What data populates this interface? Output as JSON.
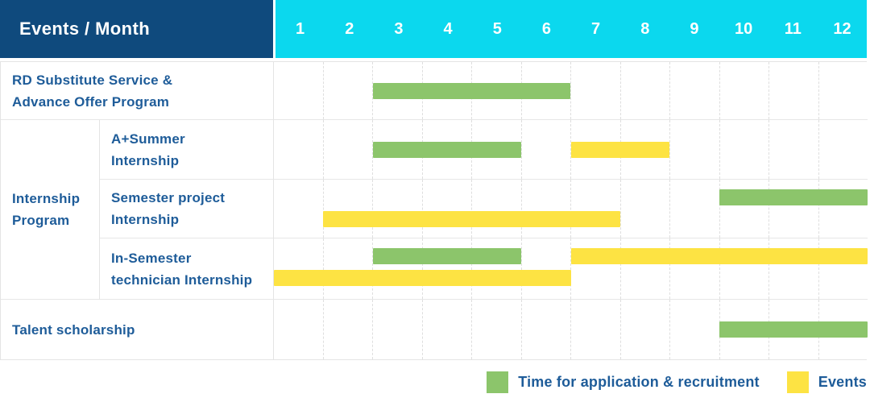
{
  "header": {
    "title": "Events / Month",
    "months": [
      "1",
      "2",
      "3",
      "4",
      "5",
      "6",
      "7",
      "8",
      "9",
      "10",
      "11",
      "12"
    ]
  },
  "colors": {
    "header_navy": "#0f4a7d",
    "month_header_cyan": "#0bd8ee",
    "green": "#8cc56b",
    "yellow": "#fde343",
    "label_text_blue": "#1e5c99",
    "grid_line": "#e4e4e4"
  },
  "row_labels": {
    "row1": {
      "line1": "RD Substitute Service &",
      "line2": "Advance Offer Program"
    },
    "group": {
      "line1": "Internship",
      "line2": "Program"
    },
    "row2": {
      "line1": "A+Summer",
      "line2": "Internship"
    },
    "row3": {
      "line1": "Semester project",
      "line2": "Internship"
    },
    "row4": {
      "line1": "In-Semester",
      "line2": "technician Internship"
    },
    "row5": {
      "line1": "Talent scholarship"
    }
  },
  "legend": {
    "items": [
      {
        "label": "Time for application & recruitment",
        "color": "#8cc56b"
      },
      {
        "label": "Events",
        "color": "#fde343"
      }
    ]
  },
  "chart_data": {
    "type": "bar",
    "subtype": "gantt-timeline",
    "title": "Events / Month",
    "x_axis": {
      "unit": "month",
      "ticks": [
        1,
        2,
        3,
        4,
        5,
        6,
        7,
        8,
        9,
        10,
        11,
        12
      ],
      "range": [
        1,
        12
      ]
    },
    "grid": true,
    "legend_position": "bottom-right",
    "series_legend": [
      {
        "name": "Time for application & recruitment",
        "color": "#8cc56b"
      },
      {
        "name": "Events",
        "color": "#fde343"
      }
    ],
    "rows": [
      {
        "label": "RD Substitute Service & Advance Offer Program",
        "group": null,
        "bars": [
          {
            "series": "Time for application & recruitment",
            "start_month": 3,
            "end_month": 6,
            "track": "single"
          }
        ]
      },
      {
        "label": "A+Summer Internship",
        "group": "Internship Program",
        "bars": [
          {
            "series": "Time for application & recruitment",
            "start_month": 3,
            "end_month": 5,
            "track": "single"
          },
          {
            "series": "Events",
            "start_month": 7,
            "end_month": 8,
            "track": "single"
          }
        ]
      },
      {
        "label": "Semester project Internship",
        "group": "Internship Program",
        "bars": [
          {
            "series": "Time for application & recruitment",
            "start_month": 10,
            "end_month": 12,
            "track": "top"
          },
          {
            "series": "Events",
            "start_month": 2,
            "end_month": 7,
            "track": "bottom"
          }
        ]
      },
      {
        "label": "In-Semester technician Internship",
        "group": "Internship Program",
        "bars": [
          {
            "series": "Time for application & recruitment",
            "start_month": 3,
            "end_month": 5,
            "track": "top"
          },
          {
            "series": "Events",
            "start_month": 7,
            "end_month": 12,
            "track": "top"
          },
          {
            "series": "Events",
            "start_month": 1,
            "end_month": 6,
            "track": "bottom"
          }
        ]
      },
      {
        "label": "Talent scholarship",
        "group": null,
        "bars": [
          {
            "series": "Time for application & recruitment",
            "start_month": 10,
            "end_month": 12,
            "track": "single"
          }
        ]
      }
    ]
  }
}
